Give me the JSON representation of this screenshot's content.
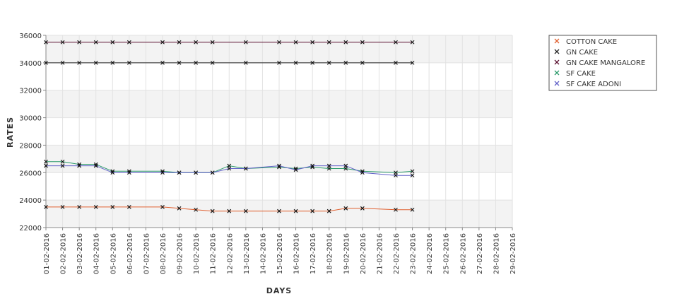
{
  "chart_data": {
    "type": "line",
    "xlabel": "DAYS",
    "ylabel": "RATES",
    "ylim": [
      22000,
      36000
    ],
    "yticks": [
      22000,
      24000,
      26000,
      28000,
      30000,
      32000,
      34000,
      36000
    ],
    "categories": [
      "01-02-2016",
      "02-02-2016",
      "03-02-2016",
      "04-02-2016",
      "05-02-2016",
      "06-02-2016",
      "07-02-2016",
      "08-02-2016",
      "09-02-2016",
      "10-02-2016",
      "11-02-2016",
      "12-02-2016",
      "13-02-2016",
      "14-02-2016",
      "15-02-2016",
      "16-02-2016",
      "17-02-2016",
      "18-02-2016",
      "19-02-2016",
      "20-02-2016",
      "21-02-2016",
      "22-02-2016",
      "23-02-2016",
      "24-02-2016",
      "25-02-2016",
      "26-02-2016",
      "27-02-2016",
      "28-02-2016",
      "29-02-2016"
    ],
    "grid": true,
    "legend": "right",
    "series": [
      {
        "name": "COTTON CAKE",
        "color": "#e06030",
        "points": [
          [
            0,
            23500
          ],
          [
            1,
            23500
          ],
          [
            2,
            23500
          ],
          [
            3,
            23500
          ],
          [
            4,
            23500
          ],
          [
            5,
            23500
          ],
          [
            7,
            23500
          ],
          [
            8,
            23400
          ],
          [
            9,
            23300
          ],
          [
            10,
            23200
          ],
          [
            11,
            23200
          ],
          [
            12,
            23200
          ],
          [
            14,
            23200
          ],
          [
            15,
            23200
          ],
          [
            16,
            23200
          ],
          [
            17,
            23200
          ],
          [
            18,
            23400
          ],
          [
            19,
            23400
          ],
          [
            21,
            23300
          ],
          [
            22,
            23300
          ]
        ]
      },
      {
        "name": "GN CAKE",
        "color": "#222222",
        "points": [
          [
            0,
            34000
          ],
          [
            1,
            34000
          ],
          [
            2,
            34000
          ],
          [
            3,
            34000
          ],
          [
            4,
            34000
          ],
          [
            5,
            34000
          ],
          [
            7,
            34000
          ],
          [
            8,
            34000
          ],
          [
            9,
            34000
          ],
          [
            10,
            34000
          ],
          [
            12,
            34000
          ],
          [
            14,
            34000
          ],
          [
            15,
            34000
          ],
          [
            16,
            34000
          ],
          [
            17,
            34000
          ],
          [
            18,
            34000
          ],
          [
            19,
            34000
          ],
          [
            21,
            34000
          ],
          [
            22,
            34000
          ]
        ]
      },
      {
        "name": "GN CAKE MANGALORE",
        "color": "#5a1030",
        "points": [
          [
            0,
            35500
          ],
          [
            1,
            35500
          ],
          [
            2,
            35500
          ],
          [
            3,
            35500
          ],
          [
            4,
            35500
          ],
          [
            5,
            35500
          ],
          [
            7,
            35500
          ],
          [
            8,
            35500
          ],
          [
            9,
            35500
          ],
          [
            10,
            35500
          ],
          [
            12,
            35500
          ],
          [
            14,
            35500
          ],
          [
            15,
            35500
          ],
          [
            16,
            35500
          ],
          [
            17,
            35500
          ],
          [
            18,
            35500
          ],
          [
            19,
            35500
          ],
          [
            21,
            35500
          ],
          [
            22,
            35500
          ]
        ]
      },
      {
        "name": "SF CAKE",
        "color": "#2a9a6a",
        "points": [
          [
            0,
            26800
          ],
          [
            1,
            26800
          ],
          [
            2,
            26600
          ],
          [
            3,
            26600
          ],
          [
            4,
            26100
          ],
          [
            5,
            26100
          ],
          [
            7,
            26100
          ],
          [
            8,
            26000
          ],
          [
            9,
            26000
          ],
          [
            10,
            26000
          ],
          [
            11,
            26500
          ],
          [
            12,
            26300
          ],
          [
            14,
            26400
          ],
          [
            15,
            26300
          ],
          [
            16,
            26400
          ],
          [
            17,
            26300
          ],
          [
            18,
            26300
          ],
          [
            19,
            26100
          ],
          [
            21,
            26000
          ],
          [
            22,
            26100
          ]
        ]
      },
      {
        "name": "SF CAKE ADONI",
        "color": "#6060c8",
        "points": [
          [
            0,
            26500
          ],
          [
            1,
            26500
          ],
          [
            2,
            26500
          ],
          [
            3,
            26500
          ],
          [
            4,
            26000
          ],
          [
            5,
            26000
          ],
          [
            7,
            26000
          ],
          [
            8,
            26000
          ],
          [
            9,
            26000
          ],
          [
            10,
            26000
          ],
          [
            11,
            26300
          ],
          [
            12,
            26300
          ],
          [
            14,
            26500
          ],
          [
            15,
            26200
          ],
          [
            16,
            26500
          ],
          [
            17,
            26500
          ],
          [
            18,
            26500
          ],
          [
            19,
            26000
          ],
          [
            21,
            25800
          ],
          [
            22,
            25800
          ]
        ]
      }
    ]
  }
}
